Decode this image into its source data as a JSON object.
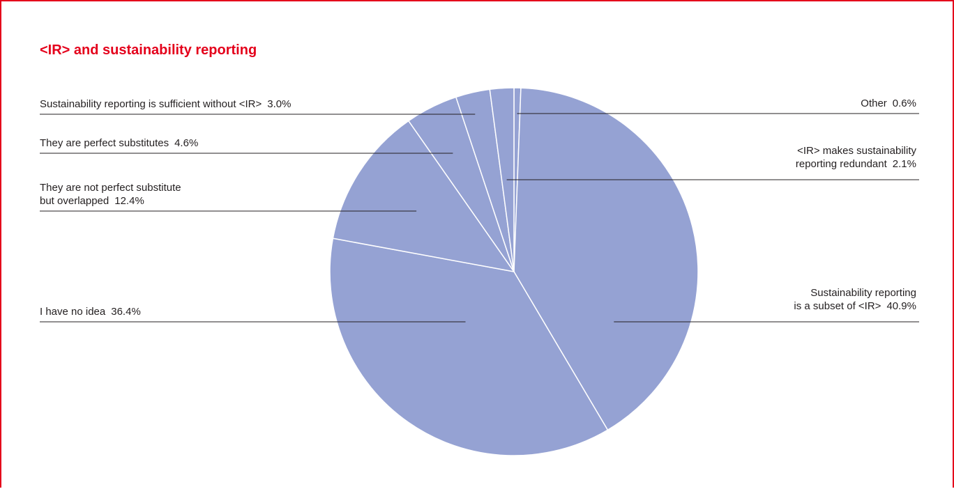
{
  "title": "<IR> and sustainability reporting",
  "colors": {
    "accent": "#e4001b",
    "slice": "#95a2d3",
    "slice_border": "#ffffff",
    "leader": "#231f20"
  },
  "chart_data": {
    "type": "pie",
    "title": "<IR> and sustainability reporting",
    "start": "12 o'clock, clockwise",
    "slices": [
      {
        "lines": [
          "Other"
        ],
        "value": 0.6,
        "value_label": "0.6%"
      },
      {
        "lines": [
          "Sustainability reporting",
          "is a subset of <IR>"
        ],
        "value": 40.9,
        "value_label": "40.9%"
      },
      {
        "lines": [
          "I have no idea"
        ],
        "value": 36.4,
        "value_label": "36.4%"
      },
      {
        "lines": [
          "They are not perfect substitute",
          "but overlapped"
        ],
        "value": 12.4,
        "value_label": "12.4%"
      },
      {
        "lines": [
          "They are perfect substitutes"
        ],
        "value": 4.6,
        "value_label": "4.6%"
      },
      {
        "lines": [
          "Sustainability reporting is sufficient without <IR>"
        ],
        "value": 3.0,
        "value_label": "3.0%"
      },
      {
        "lines": [
          "<IR> makes sustainability",
          "reporting redundant"
        ],
        "value": 2.1,
        "value_label": "2.1%"
      }
    ]
  }
}
